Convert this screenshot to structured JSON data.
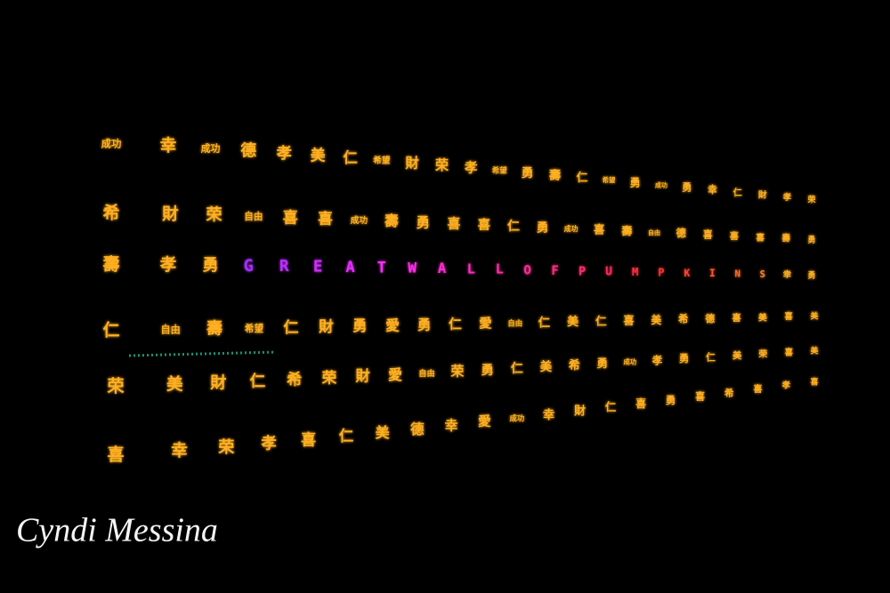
{
  "rows": [
    [
      "成功",
      "幸",
      "成功",
      "德",
      "孝",
      "美",
      "仁",
      "希望",
      "財",
      "荣",
      "孝",
      "希望",
      "勇",
      "壽",
      "仁",
      "希望",
      "勇",
      "成功",
      "勇",
      "幸",
      "仁",
      "財",
      "孝",
      "荣"
    ],
    [
      "希",
      "財",
      "荣",
      "自由",
      "喜",
      "喜",
      "成功",
      "壽",
      "勇",
      "喜",
      "喜",
      "仁",
      "勇",
      "成功",
      "喜",
      "壽",
      "自由",
      "德",
      "喜",
      "喜",
      "喜",
      "壽",
      "勇"
    ],
    [
      "仁",
      "自由",
      "壽",
      "希望",
      "仁",
      "財",
      "勇",
      "愛",
      "勇",
      "仁",
      "愛",
      "自由",
      "仁",
      "美",
      "仁",
      "喜",
      "美",
      "希",
      "德",
      "喜",
      "美",
      "喜",
      "美"
    ],
    [
      "荣",
      "美",
      "財",
      "仁",
      "希",
      "荣",
      "財",
      "愛",
      "自由",
      "荣",
      "勇",
      "仁",
      "美",
      "希",
      "勇",
      "成功",
      "孝",
      "勇",
      "仁",
      "美",
      "荣",
      "喜",
      "美"
    ],
    [
      "喜",
      "幸",
      "荣",
      "孝",
      "喜",
      "仁",
      "美",
      "德",
      "幸",
      "愛",
      "成功",
      "幸",
      "財",
      "仁",
      "喜",
      "勇",
      "喜",
      "希",
      "喜",
      "孝",
      "喜"
    ]
  ],
  "banner_row": {
    "before": [
      "壽",
      "孝",
      "勇"
    ],
    "letters": [
      "G",
      "R",
      "E",
      "A",
      "T",
      "W",
      "A",
      "L",
      "L",
      "O",
      "F",
      "P",
      "U",
      "M",
      "P",
      "K",
      "I",
      "N",
      "S"
    ],
    "after": [
      "幸",
      "勇"
    ]
  },
  "watermark": "Cyndi Messina"
}
